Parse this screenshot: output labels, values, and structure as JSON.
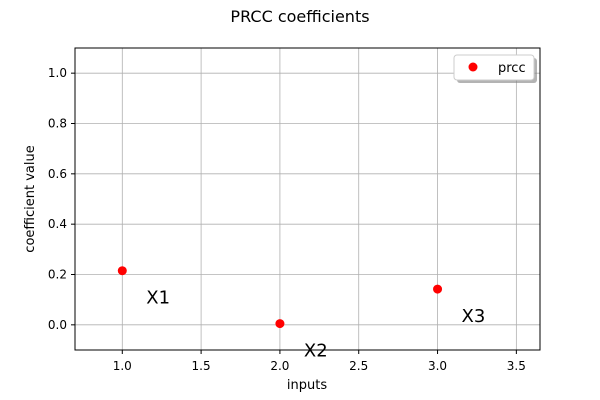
{
  "chart_data": {
    "type": "scatter",
    "title": "PRCC coefficients",
    "xlabel": "inputs",
    "ylabel": "coefficient value",
    "xlim": [
      0.7,
      3.65
    ],
    "ylim": [
      -0.1,
      1.1
    ],
    "xticks": [
      1.0,
      1.5,
      2.0,
      2.5,
      3.0,
      3.5
    ],
    "xtick_labels": [
      "1.0",
      "1.5",
      "2.0",
      "2.5",
      "3.0",
      "3.5"
    ],
    "yticks": [
      0.0,
      0.2,
      0.4,
      0.6,
      0.8,
      1.0
    ],
    "ytick_labels": [
      "0.0",
      "0.2",
      "0.4",
      "0.6",
      "0.8",
      "1.0"
    ],
    "grid": true,
    "legend_position": "top-right",
    "series": [
      {
        "name": "prcc",
        "color": "#ff0000",
        "x": [
          1.0,
          2.0,
          3.0
        ],
        "y": [
          0.215,
          0.005,
          0.142
        ],
        "point_labels": [
          "X1",
          "X2",
          "X3"
        ]
      }
    ]
  }
}
